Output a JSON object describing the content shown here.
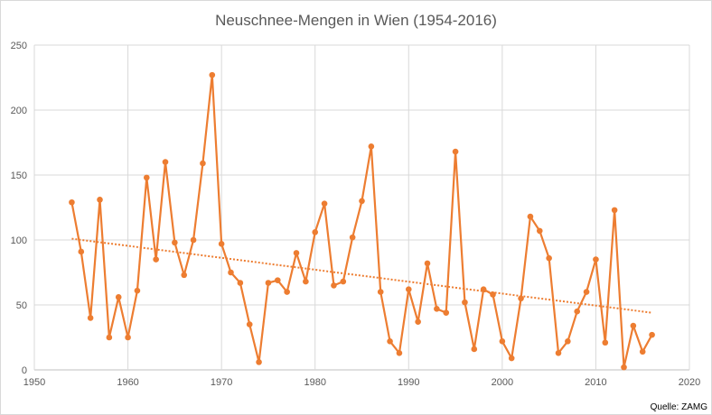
{
  "chart_data": {
    "type": "line",
    "title": "Neuschnee-Mengen in Wien (1954-2016)",
    "source": "Quelle: ZAMG",
    "xlabel": "",
    "ylabel": "",
    "xlim": [
      1950,
      2020
    ],
    "ylim": [
      0,
      250
    ],
    "xticks": [
      1950,
      1960,
      1970,
      1980,
      1990,
      2000,
      2010,
      2020
    ],
    "yticks": [
      0,
      50,
      100,
      150,
      200,
      250
    ],
    "grid": true,
    "series": [
      {
        "name": "Neuschnee",
        "color": "#ED7D31",
        "x": [
          1954,
          1955,
          1956,
          1957,
          1958,
          1959,
          1960,
          1961,
          1962,
          1963,
          1964,
          1965,
          1966,
          1967,
          1968,
          1969,
          1970,
          1971,
          1972,
          1973,
          1974,
          1975,
          1976,
          1977,
          1978,
          1979,
          1980,
          1981,
          1982,
          1983,
          1984,
          1985,
          1986,
          1987,
          1988,
          1989,
          1990,
          1991,
          1992,
          1993,
          1994,
          1995,
          1996,
          1997,
          1998,
          1999,
          2000,
          2001,
          2002,
          2003,
          2004,
          2005,
          2006,
          2007,
          2008,
          2009,
          2010,
          2011,
          2012,
          2013,
          2014,
          2015,
          2016
        ],
        "y": [
          129,
          91,
          40,
          131,
          25,
          56,
          25,
          61,
          148,
          85,
          160,
          98,
          73,
          100,
          159,
          227,
          97,
          75,
          67,
          35,
          6,
          67,
          69,
          60,
          90,
          68,
          106,
          128,
          65,
          68,
          102,
          130,
          172,
          60,
          22,
          13,
          62,
          37,
          82,
          47,
          44,
          168,
          52,
          16,
          62,
          58,
          22,
          9,
          55,
          118,
          107,
          86,
          13,
          22,
          45,
          60,
          85,
          21,
          123,
          2,
          34,
          14,
          27
        ]
      }
    ],
    "trendline": {
      "type": "linear",
      "style": "dotted",
      "color": "#ED7D31",
      "x": [
        1954,
        2016
      ],
      "y": [
        101,
        44
      ]
    }
  }
}
